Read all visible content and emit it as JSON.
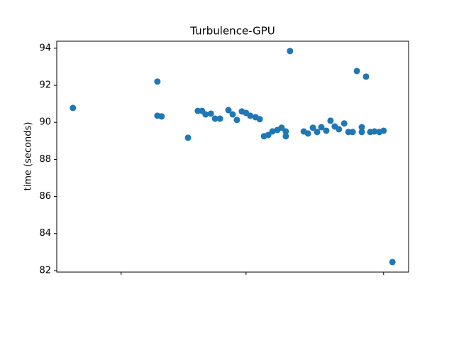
{
  "chart_data": {
    "type": "scatter",
    "title": "Turbulence-GPU",
    "y_label": "time (seconds)",
    "x": [
      4.6,
      28.6,
      28.6,
      29.8,
      37.3,
      40.1,
      41.3,
      42.3,
      43.8,
      45.0,
      46.4,
      48.8,
      50.0,
      51.2,
      52.6,
      53.8,
      55.0,
      56.5,
      57.7,
      58.9,
      60.1,
      61.3,
      62.7,
      63.9,
      65.1,
      65.1,
      66.3,
      70.2,
      71.4,
      72.8,
      74.0,
      75.2,
      76.6,
      77.8,
      79.0,
      80.2,
      81.7,
      82.9,
      84.1,
      85.3,
      86.7,
      86.7,
      87.9,
      89.1,
      90.3,
      91.7,
      92.9,
      95.4
    ],
    "values": [
      90.78,
      92.2,
      90.36,
      90.32,
      89.17,
      90.62,
      90.62,
      90.43,
      90.47,
      90.2,
      90.2,
      90.66,
      90.43,
      90.13,
      90.59,
      90.51,
      90.36,
      90.28,
      90.17,
      89.25,
      89.32,
      89.51,
      89.59,
      89.71,
      89.51,
      89.25,
      93.85,
      89.51,
      89.4,
      89.71,
      89.48,
      89.74,
      89.55,
      90.09,
      89.78,
      89.63,
      89.94,
      89.48,
      89.48,
      92.77,
      89.74,
      89.48,
      92.47,
      89.48,
      89.51,
      89.48,
      89.55,
      82.46
    ],
    "color": "#1f77b4",
    "xlim": [
      0,
      100
    ],
    "xticks": [
      18.3,
      53.8,
      92.9
    ],
    "ylim": [
      81.92,
      94.38
    ],
    "yticks": [
      82,
      84,
      86,
      88,
      90,
      92,
      94
    ]
  }
}
